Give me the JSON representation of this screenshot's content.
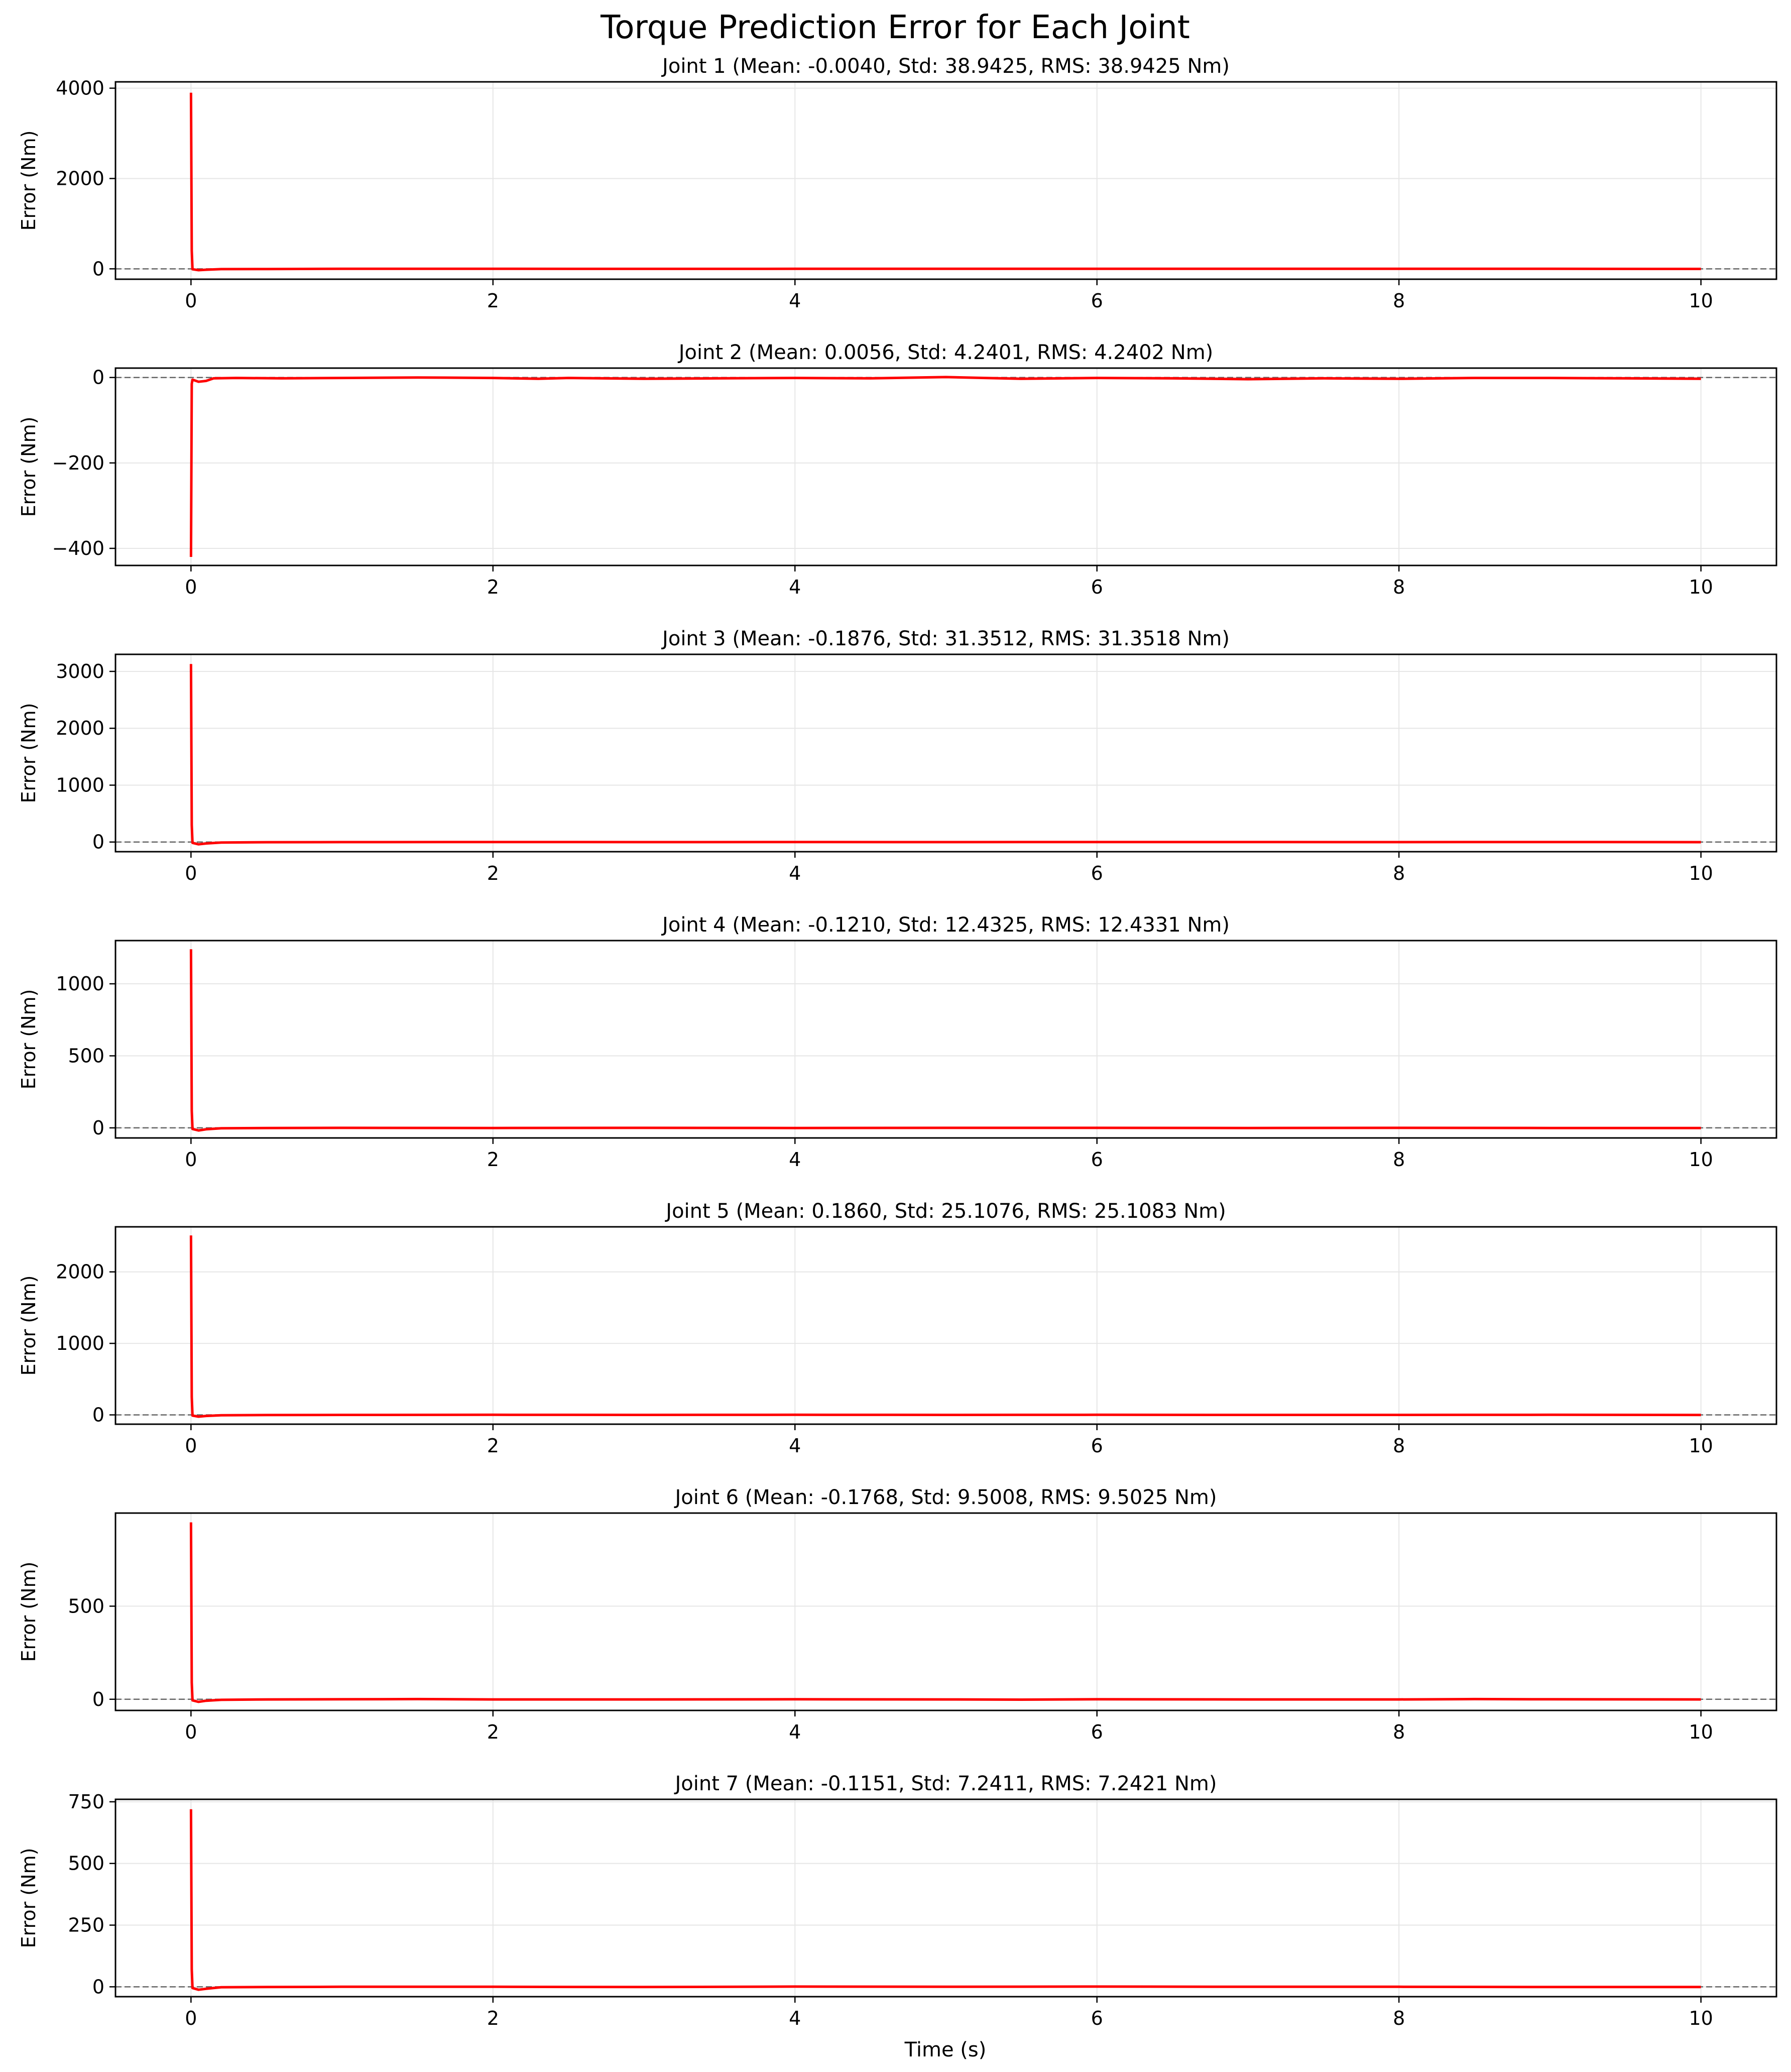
{
  "figure": {
    "title": "Torque Prediction Error for Each Joint",
    "xlabel": "Time (s)"
  },
  "colors": {
    "series": "#ff0000",
    "zero_line": "#666666",
    "grid": "#e6e6e6",
    "axes": "#000000"
  },
  "chart_data": [
    {
      "type": "line",
      "title": "Joint 1 (Mean: -0.0040, Std: 38.9425, RMS: 38.9425 Nm)",
      "xlabel": "",
      "ylabel": "Error (Nm)",
      "xlim": [
        -0.5,
        10.5
      ],
      "ylim": [
        -230,
        4140
      ],
      "xticks": [
        0,
        2,
        4,
        6,
        8,
        10
      ],
      "yticks": [
        0,
        2000,
        4000
      ],
      "grid": true,
      "zero_line": true,
      "series": [
        {
          "x": [
            0,
            0.005,
            0.01,
            0.05,
            0.1,
            0.2,
            0.5,
            1,
            2,
            3,
            4,
            5,
            6,
            7,
            8,
            9,
            10
          ],
          "values": [
            3900,
            400,
            -10,
            -30,
            -20,
            -6,
            -4,
            0,
            0,
            -1,
            0,
            1,
            0,
            0,
            1,
            0,
            -2
          ]
        }
      ]
    },
    {
      "type": "line",
      "title": "Joint 2 (Mean: 0.0056, Std: 4.2401, RMS: 4.2402 Nm)",
      "xlabel": "",
      "ylabel": "Error (Nm)",
      "xlim": [
        -0.5,
        10.5
      ],
      "ylim": [
        -440,
        22
      ],
      "xticks": [
        0,
        2,
        4,
        6,
        8,
        10
      ],
      "yticks": [
        -400,
        -200,
        0
      ],
      "grid": true,
      "zero_line": true,
      "series": [
        {
          "x": [
            0,
            0.005,
            0.01,
            0.05,
            0.1,
            0.15,
            0.3,
            0.6,
            1,
            1.5,
            2,
            2.3,
            2.5,
            3,
            3.5,
            4,
            4.5,
            5,
            5.5,
            6,
            6.5,
            7,
            7.5,
            8,
            8.5,
            9,
            9.5,
            10
          ],
          "values": [
            -420,
            -15,
            -5,
            -10,
            -8,
            -2,
            -1,
            -2,
            -1,
            0,
            -1,
            -3,
            -1,
            -3,
            -2,
            -1,
            -2,
            1,
            -3,
            -1,
            -2,
            -4,
            -2,
            -3,
            -1,
            -1,
            -2,
            -3
          ]
        }
      ]
    },
    {
      "type": "line",
      "title": "Joint 3 (Mean: -0.1876, Std: 31.3512, RMS: 31.3518 Nm)",
      "xlabel": "",
      "ylabel": "Error (Nm)",
      "xlim": [
        -0.5,
        10.5
      ],
      "ylim": [
        -170,
        3300
      ],
      "xticks": [
        0,
        2,
        4,
        6,
        8,
        10
      ],
      "yticks": [
        0,
        1000,
        2000,
        3000
      ],
      "grid": true,
      "zero_line": true,
      "series": [
        {
          "x": [
            0,
            0.005,
            0.01,
            0.05,
            0.1,
            0.2,
            0.5,
            1,
            2,
            3,
            4,
            5,
            6,
            7,
            8,
            9,
            10
          ],
          "values": [
            3130,
            300,
            -15,
            -40,
            -25,
            -8,
            -3,
            -1,
            0,
            -1,
            0,
            -1,
            0,
            0,
            -1,
            0,
            -2
          ]
        }
      ]
    },
    {
      "type": "line",
      "title": "Joint 4 (Mean: -0.1210, Std: 12.4325, RMS: 12.4331 Nm)",
      "xlabel": "",
      "ylabel": "Error (Nm)",
      "xlim": [
        -0.5,
        10.5
      ],
      "ylim": [
        -70,
        1300
      ],
      "xticks": [
        0,
        2,
        4,
        6,
        8,
        10
      ],
      "yticks": [
        0,
        500,
        1000
      ],
      "grid": true,
      "zero_line": true,
      "series": [
        {
          "x": [
            0,
            0.005,
            0.01,
            0.05,
            0.1,
            0.2,
            0.5,
            1,
            2,
            3,
            4,
            5,
            6,
            7,
            8,
            9,
            10
          ],
          "values": [
            1240,
            120,
            -8,
            -18,
            -10,
            -3,
            -1,
            0,
            -1,
            0,
            -1,
            0,
            0,
            -1,
            0,
            -1,
            -1
          ]
        }
      ]
    },
    {
      "type": "line",
      "title": "Joint 5 (Mean: 0.1860, Std: 25.1076, RMS: 25.1083 Nm)",
      "xlabel": "",
      "ylabel": "Error (Nm)",
      "xlim": [
        -0.5,
        10.5
      ],
      "ylim": [
        -130,
        2630
      ],
      "xticks": [
        0,
        2,
        4,
        6,
        8,
        10
      ],
      "yticks": [
        0,
        1000,
        2000
      ],
      "grid": true,
      "zero_line": true,
      "series": [
        {
          "x": [
            0,
            0.005,
            0.01,
            0.05,
            0.1,
            0.2,
            0.5,
            1,
            2,
            3,
            4,
            5,
            6,
            7,
            8,
            9,
            10
          ],
          "values": [
            2510,
            250,
            -10,
            -25,
            -15,
            -5,
            -2,
            0,
            1,
            0,
            1,
            0,
            1,
            0,
            0,
            1,
            -1
          ]
        }
      ]
    },
    {
      "type": "line",
      "title": "Joint 6 (Mean: -0.1768, Std: 9.5008, RMS: 9.5025 Nm)",
      "xlabel": "",
      "ylabel": "Error (Nm)",
      "xlim": [
        -0.5,
        10.5
      ],
      "ylim": [
        -60,
        1000
      ],
      "xticks": [
        0,
        2,
        4,
        6,
        8,
        10
      ],
      "yticks": [
        0,
        500
      ],
      "grid": true,
      "zero_line": true,
      "series": [
        {
          "x": [
            0,
            0.005,
            0.01,
            0.05,
            0.1,
            0.2,
            0.5,
            1,
            1.5,
            2,
            3,
            4,
            5,
            5.5,
            6,
            7,
            8,
            8.5,
            9,
            10
          ],
          "values": [
            950,
            90,
            -6,
            -14,
            -8,
            -3,
            -1,
            0,
            1,
            -1,
            -1,
            0,
            -1,
            -2,
            0,
            -1,
            -1,
            1,
            0,
            -1
          ]
        }
      ]
    },
    {
      "type": "line",
      "title": "Joint 7 (Mean: -0.1151, Std: 7.2411, RMS: 7.2421 Nm)",
      "xlabel": "Time (s)",
      "ylabel": "Error (Nm)",
      "xlim": [
        -0.5,
        10.5
      ],
      "ylim": [
        -40,
        760
      ],
      "xticks": [
        0,
        2,
        4,
        6,
        8,
        10
      ],
      "yticks": [
        0,
        250,
        500,
        750
      ],
      "grid": true,
      "zero_line": true,
      "series": [
        {
          "x": [
            0,
            0.005,
            0.01,
            0.05,
            0.1,
            0.2,
            0.5,
            1,
            2,
            3,
            4,
            5,
            6,
            7,
            8,
            9,
            10
          ],
          "values": [
            720,
            70,
            -5,
            -12,
            -8,
            -2,
            -1,
            0,
            0,
            -1,
            1,
            0,
            1,
            0,
            0,
            -1,
            -1
          ]
        }
      ]
    }
  ]
}
